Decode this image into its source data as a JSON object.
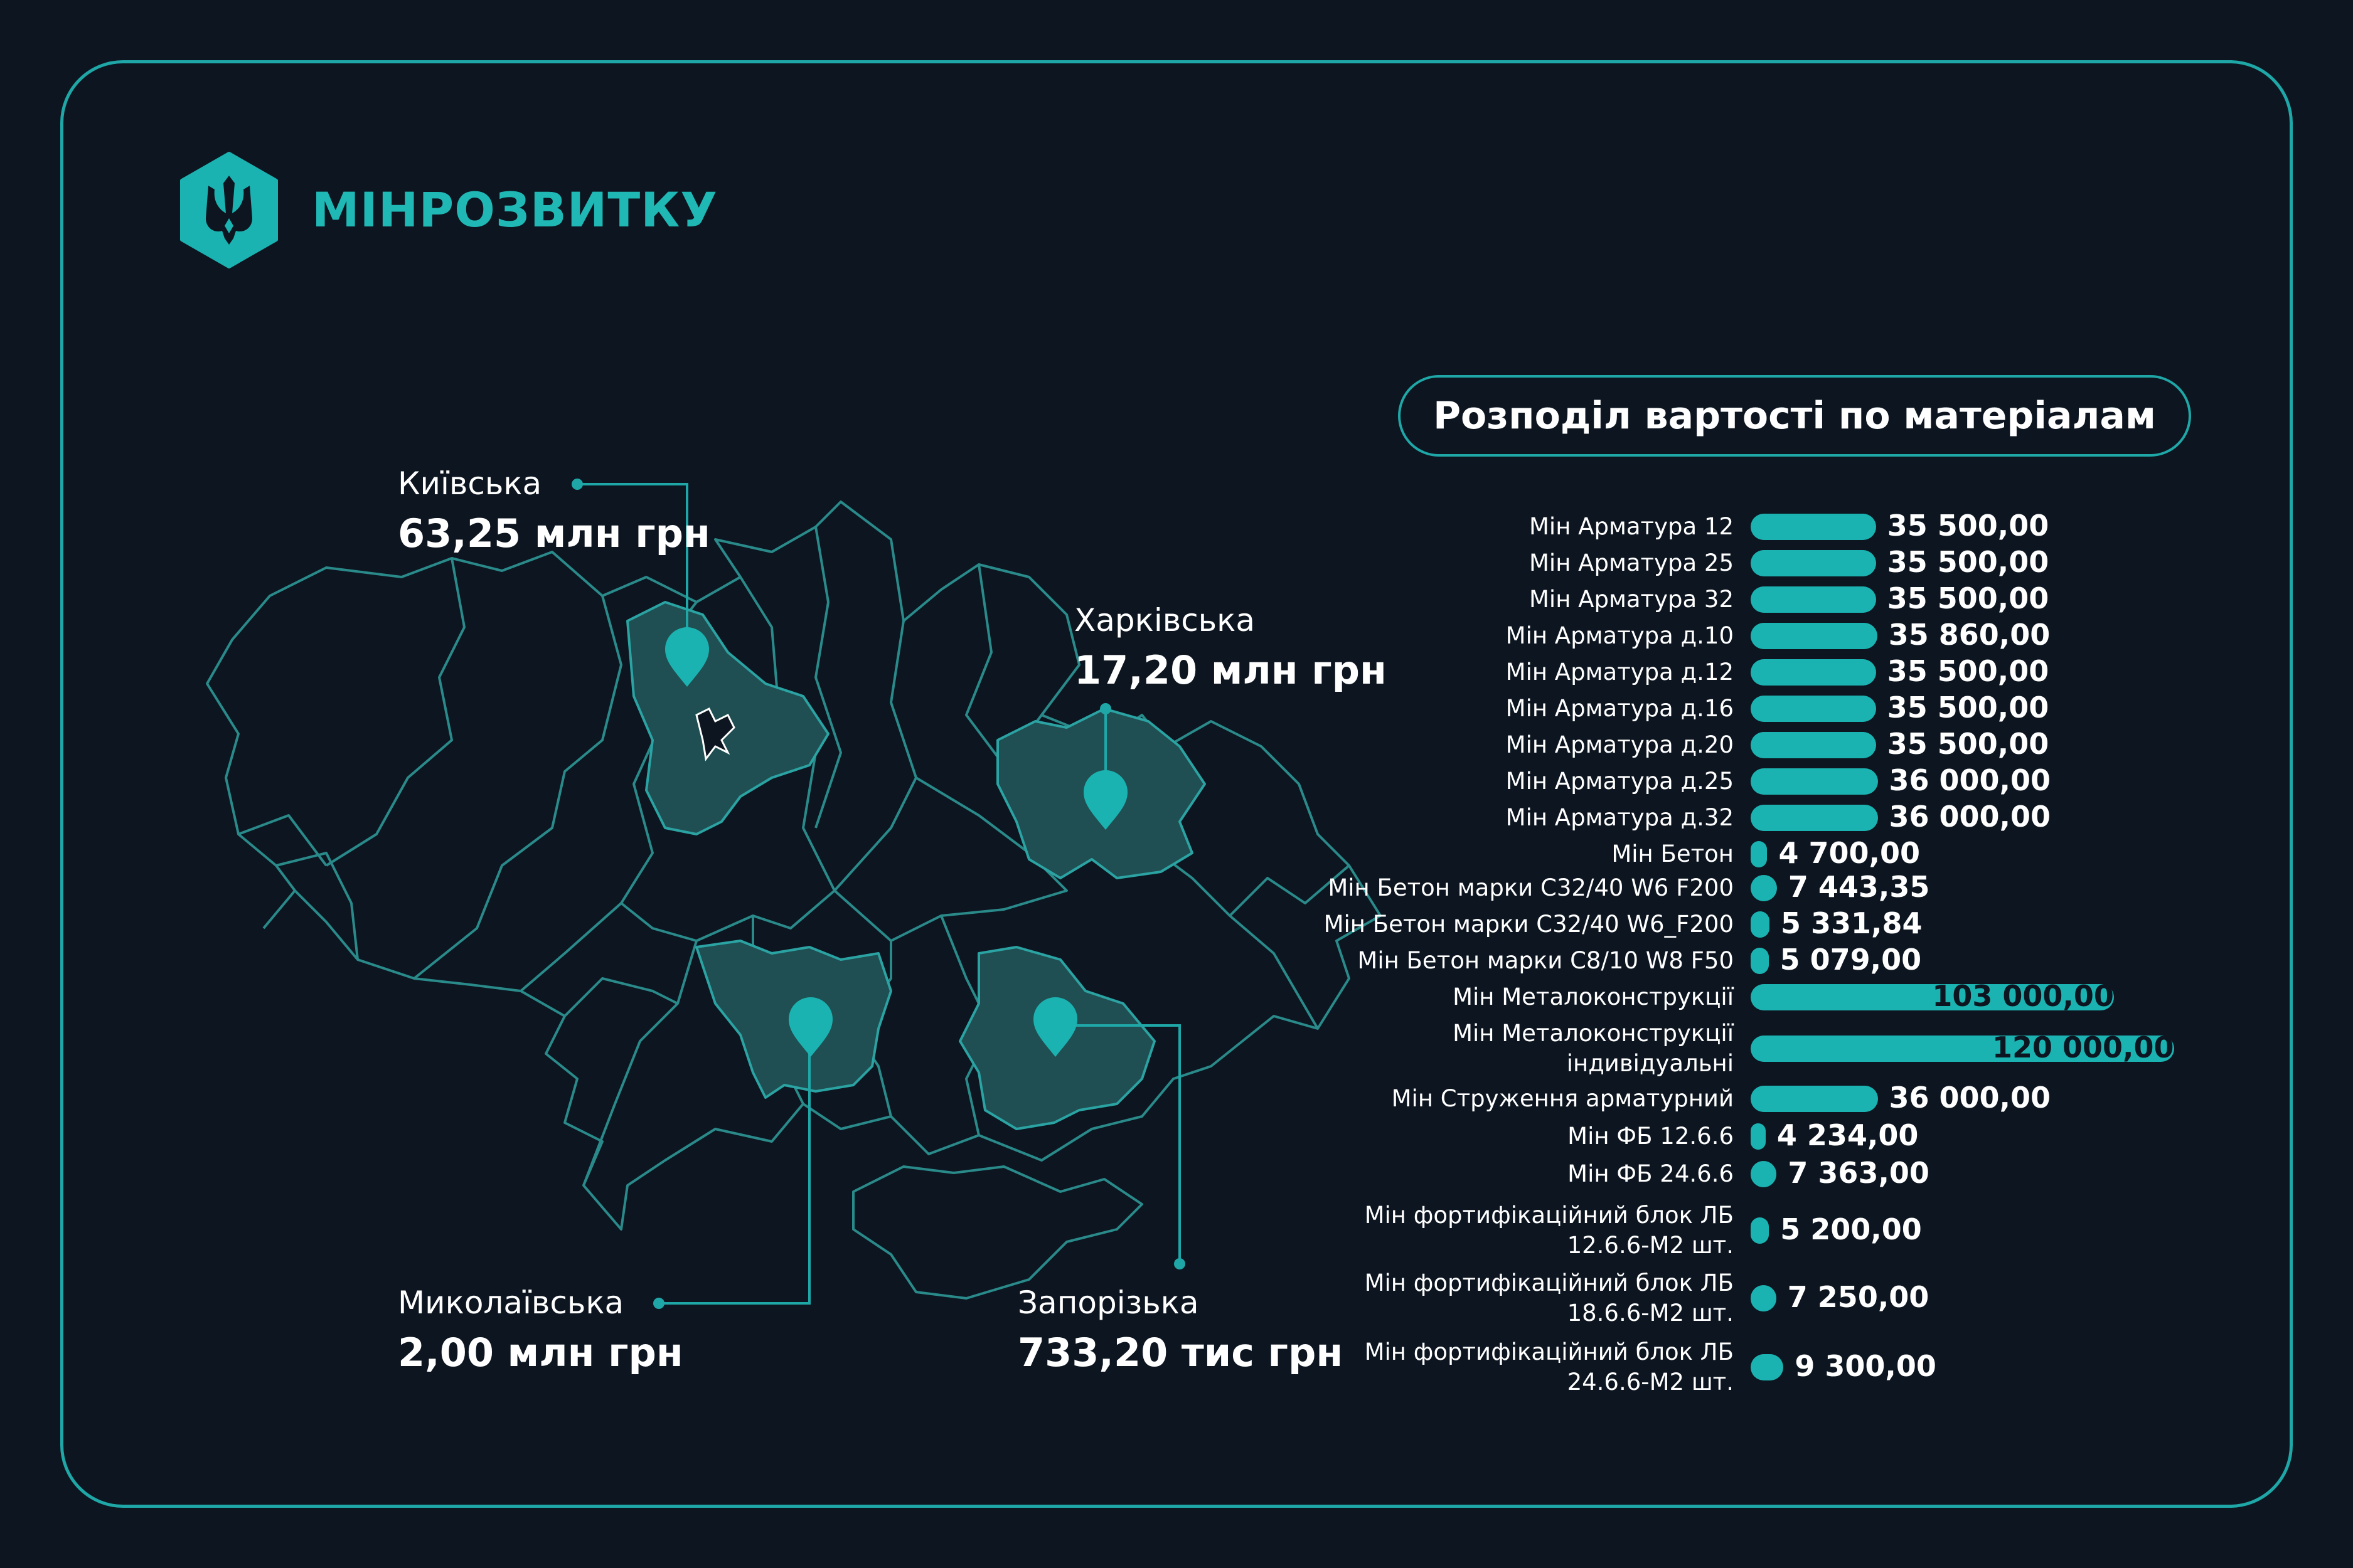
{
  "brand": {
    "name": "МІНРОЗВИТКУ"
  },
  "colors": {
    "background": "#0c1520",
    "accent": "#1bb3b1",
    "region_fill": "#1f4f52",
    "border": "#2a8a8a",
    "text": "#ffffff"
  },
  "map": {
    "regions": [
      {
        "name": "Київська",
        "value": "63,25 млн грн"
      },
      {
        "name": "Харківська",
        "value": "17,20 млн грн"
      },
      {
        "name": "Миколаївська",
        "value": "2,00 млн грн"
      },
      {
        "name": "Запорізька",
        "value": "733,20 тис грн"
      }
    ]
  },
  "chart_data": {
    "type": "bar",
    "orientation": "horizontal",
    "title": "Розподіл вартості по матеріалам",
    "categories": [
      "Мін Арматура 12",
      "Мін Арматура 25",
      "Мін Арматура 32",
      "Мін Арматура д.10",
      "Мін Арматура д.12",
      "Мін Арматура д.16",
      "Мін Арматура д.20",
      "Мін Арматура д.25",
      "Мін Арматура д.32",
      "Мін Бетон",
      "Мін Бетон марки С32/40 W6 F200",
      "Мін Бетон марки С32/40 W6_F200",
      "Мін Бетон марки С8/10 W8 F50",
      "Мін Металоконструкції",
      "Мін Металоконструкції\nіндивідуальні",
      "Мін Струження арматурний",
      "Мін ФБ 12.6.6",
      "Мін ФБ 24.6.6",
      "Мін фортифікаційний блок ЛБ\n12.6.6-М2 шт.",
      "Мін фортифікаційний блок ЛБ\n18.6.6-М2 шт.",
      "Мін фортифікаційний блок ЛБ\n24.6.6-М2 шт."
    ],
    "values": [
      35500,
      35500,
      35500,
      35860,
      35500,
      35500,
      35500,
      36000,
      36000,
      4700,
      7443.35,
      5331.84,
      5079,
      103000,
      120000,
      36000,
      4234,
      7363,
      5200,
      7250,
      9300
    ],
    "value_labels": [
      "35 500,00",
      "35 500,00",
      "35 500,00",
      "35 860,00",
      "35 500,00",
      "35 500,00",
      "35 500,00",
      "36 000,00",
      "36 000,00",
      "4 700,00",
      "7 443,35",
      "5 331,84",
      "5 079,00",
      "103 000,00",
      "120 000,00",
      "36 000,00",
      "4 234,00",
      "7 363,00",
      "5 200,00",
      "7 250,00",
      "9 300,00"
    ],
    "xlim": [
      0,
      120000
    ],
    "grid": false,
    "legend": "none"
  }
}
